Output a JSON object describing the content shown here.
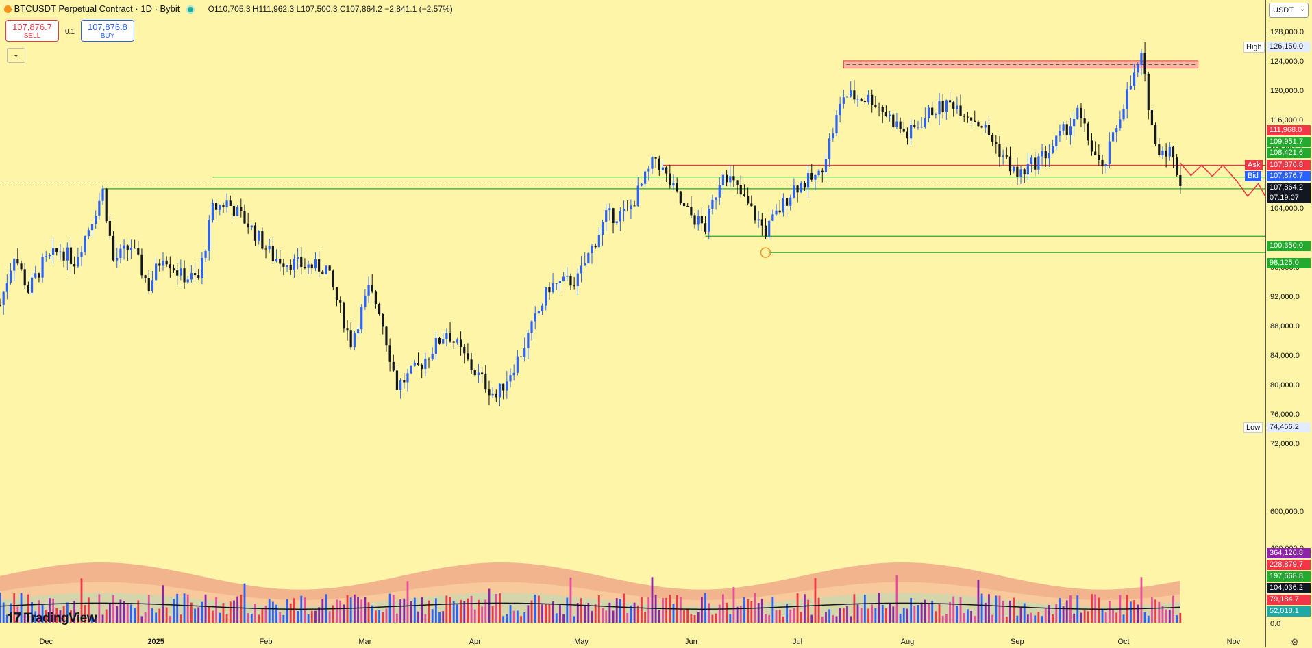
{
  "header": {
    "symbol": "BTCUSDT Perpetual Contract · 1D · Bybit",
    "open": "O110,705.3",
    "high": "H111,962.3",
    "low": "L107,500.3",
    "close": "C107,864.2",
    "change": "−2,841.1 (−2.57%)"
  },
  "trade": {
    "sell_price": "107,876.7",
    "sell_label": "SELL",
    "buy_price": "107,876.8",
    "buy_label": "BUY",
    "qty": "0.1",
    "collapse_icon": "chevron-down-icon"
  },
  "currency": "USDT",
  "logo": "TradingView",
  "colors": {
    "background": "#fff5a8",
    "up": "#2962ff",
    "down": "#131722",
    "support": "#22ab2e",
    "resistance": "#f23645",
    "vol_red": "#f23645",
    "vol_blue": "#2962ff",
    "vol_pink": "#e84ca0",
    "vol_purple": "#8e24aa"
  },
  "chart_data": {
    "type": "candlestick",
    "title": "BTCUSDT Perpetual Contract · 1D · Bybit",
    "x_start": "2024-11-18",
    "x_end": "2025-11-10",
    "x_months": [
      {
        "label": "Dec",
        "date": "2024-12-01"
      },
      {
        "label": "2025",
        "date": "2025-01-01"
      },
      {
        "label": "Feb",
        "date": "2025-02-01"
      },
      {
        "label": "Mar",
        "date": "2025-03-01"
      },
      {
        "label": "Apr",
        "date": "2025-04-01"
      },
      {
        "label": "May",
        "date": "2025-05-01"
      },
      {
        "label": "Jun",
        "date": "2025-06-01"
      },
      {
        "label": "Jul",
        "date": "2025-07-01"
      },
      {
        "label": "Aug",
        "date": "2025-08-01"
      },
      {
        "label": "Sep",
        "date": "2025-09-01"
      },
      {
        "label": "Oct",
        "date": "2025-10-01"
      },
      {
        "label": "Nov",
        "date": "2025-11-01"
      }
    ],
    "price_ticks": [
      "128,000.0",
      "124,000.0",
      "120,000.0",
      "116,000.0",
      "112,000.0",
      "104,000.0",
      "96,000.0",
      "92,000.0",
      "88,000.0",
      "84,000.0",
      "80,000.0",
      "76,000.0",
      "72,000.0"
    ],
    "volume_ticks": [
      "600,000.0",
      "400,000.0",
      "0.0"
    ],
    "high": {
      "label": "High",
      "value": "126,150.0"
    },
    "low": {
      "label": "Low",
      "value": "74,456.2"
    },
    "closes": [
      {
        "date": "2024-11-18",
        "close": 91000
      },
      {
        "date": "2024-11-22",
        "close": 98000
      },
      {
        "date": "2024-11-26",
        "close": 93000
      },
      {
        "date": "2024-11-30",
        "close": 96500
      },
      {
        "date": "2024-12-05",
        "close": 98500
      },
      {
        "date": "2024-12-09",
        "close": 97000
      },
      {
        "date": "2024-12-13",
        "close": 101500
      },
      {
        "date": "2024-12-17",
        "close": 106500
      },
      {
        "date": "2024-12-20",
        "close": 97000
      },
      {
        "date": "2024-12-25",
        "close": 99000
      },
      {
        "date": "2024-12-30",
        "close": 93500
      },
      {
        "date": "2025-01-03",
        "close": 98000
      },
      {
        "date": "2025-01-08",
        "close": 95000
      },
      {
        "date": "2025-01-13",
        "close": 94500
      },
      {
        "date": "2025-01-17",
        "close": 104000
      },
      {
        "date": "2025-01-21",
        "close": 105000
      },
      {
        "date": "2025-01-27",
        "close": 102000
      },
      {
        "date": "2025-02-03",
        "close": 97500
      },
      {
        "date": "2025-02-10",
        "close": 96500
      },
      {
        "date": "2025-02-18",
        "close": 96000
      },
      {
        "date": "2025-02-25",
        "close": 86000
      },
      {
        "date": "2025-03-02",
        "close": 93000
      },
      {
        "date": "2025-03-05",
        "close": 90500
      },
      {
        "date": "2025-03-10",
        "close": 80000
      },
      {
        "date": "2025-03-16",
        "close": 82500
      },
      {
        "date": "2025-03-24",
        "close": 87500
      },
      {
        "date": "2025-03-31",
        "close": 82500
      },
      {
        "date": "2025-04-07",
        "close": 78500
      },
      {
        "date": "2025-04-14",
        "close": 84500
      },
      {
        "date": "2025-04-22",
        "close": 93500
      },
      {
        "date": "2025-04-30",
        "close": 94500
      },
      {
        "date": "2025-05-08",
        "close": 103000
      },
      {
        "date": "2025-05-14",
        "close": 103500
      },
      {
        "date": "2025-05-22",
        "close": 111000
      },
      {
        "date": "2025-05-30",
        "close": 104000
      },
      {
        "date": "2025-06-05",
        "close": 101500
      },
      {
        "date": "2025-06-10",
        "close": 109500
      },
      {
        "date": "2025-06-17",
        "close": 104500
      },
      {
        "date": "2025-06-22",
        "close": 101000
      },
      {
        "date": "2025-06-30",
        "close": 107000
      },
      {
        "date": "2025-07-07",
        "close": 108500
      },
      {
        "date": "2025-07-14",
        "close": 119500
      },
      {
        "date": "2025-07-22",
        "close": 119000
      },
      {
        "date": "2025-08-01",
        "close": 114000
      },
      {
        "date": "2025-08-08",
        "close": 117500
      },
      {
        "date": "2025-08-14",
        "close": 118500
      },
      {
        "date": "2025-08-22",
        "close": 115500
      },
      {
        "date": "2025-09-01",
        "close": 108500
      },
      {
        "date": "2025-09-10",
        "close": 112000
      },
      {
        "date": "2025-09-18",
        "close": 117000
      },
      {
        "date": "2025-09-25",
        "close": 109000
      },
      {
        "date": "2025-10-01",
        "close": 118500
      },
      {
        "date": "2025-10-06",
        "close": 124500
      },
      {
        "date": "2025-10-10",
        "close": 112500
      },
      {
        "date": "2025-10-14",
        "close": 112000
      },
      {
        "date": "2025-10-17",
        "close": 107864.2
      }
    ],
    "resistance_zone": {
      "from": "2025-07-14",
      "to": "2025-10-22",
      "low": 123200,
      "high": 124200
    },
    "horizontal_lines": [
      {
        "from": "2025-05-24",
        "price": 110000,
        "color": "#f23645"
      },
      {
        "from": "2025-01-17",
        "price": 108400,
        "color": "#22ab2e"
      },
      {
        "from": "2024-12-17",
        "price": 106800,
        "color": "#22ab2e"
      },
      {
        "from": "2025-06-05",
        "price": 100350,
        "color": "#22ab2e"
      },
      {
        "from": "2025-06-23",
        "price": 98125,
        "color": "#22ab2e"
      }
    ],
    "projection": [
      {
        "date": "2025-10-17",
        "price": 110300
      },
      {
        "date": "2025-10-20",
        "price": 108600
      },
      {
        "date": "2025-10-23",
        "price": 110000
      },
      {
        "date": "2025-10-26",
        "price": 108500
      },
      {
        "date": "2025-10-29",
        "price": 110000
      },
      {
        "date": "2025-11-02",
        "price": 107800
      },
      {
        "date": "2025-11-05",
        "price": 105800
      },
      {
        "date": "2025-11-08",
        "price": 107500
      },
      {
        "date": "2025-11-12",
        "price": 104000
      },
      {
        "date": "2025-11-15",
        "price": 101800
      }
    ],
    "price_labels": [
      {
        "value": "111,968.0",
        "color": "#f23645",
        "price": 111968
      },
      {
        "value": "109,951.7",
        "color": "#22ab2e",
        "price": 109951
      },
      {
        "value": "108,421.6",
        "color": "#22ab2e",
        "price": 108421
      },
      {
        "value": "107,876.8",
        "color": "#f23645",
        "price": 107876.8,
        "tag": "Ask"
      },
      {
        "value": "107,876.7",
        "color": "#2962ff",
        "price": 107876.7,
        "tag": "Bid"
      },
      {
        "value": "107,864.2",
        "color": "#131722",
        "price": 107864.2,
        "countdown": "07:19:07"
      },
      {
        "value": "100,350.0",
        "color": "#22ab2e",
        "price": 100350
      },
      {
        "value": "98,125.0",
        "color": "#22ab2e",
        "price": 98125
      }
    ],
    "volume_labels": [
      {
        "value": "364,126.8",
        "color": "#8e24aa"
      },
      {
        "value": "228,879.7",
        "color": "#f23645"
      },
      {
        "value": "197,668.8",
        "color": "#22ab2e"
      },
      {
        "value": "104,036.2",
        "color": "#131722"
      },
      {
        "value": "79,184.7",
        "color": "#f23645"
      },
      {
        "value": "52,018.1",
        "color": "#22a6a6"
      }
    ]
  }
}
